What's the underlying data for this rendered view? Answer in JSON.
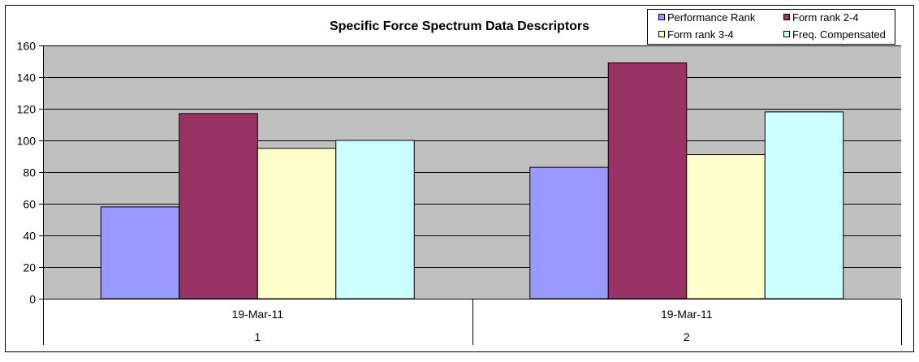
{
  "chart_data": {
    "type": "bar",
    "title": "Specific Force Spectrum Data Descriptors",
    "xlabel": "",
    "ylabel": "",
    "ylim": [
      0,
      160
    ],
    "yticks": [
      0,
      20,
      40,
      60,
      80,
      100,
      120,
      140,
      160
    ],
    "grid": true,
    "legend_position": "top-right",
    "categories": [
      {
        "date": "19-Mar-11",
        "index": "1"
      },
      {
        "date": "19-Mar-11",
        "index": "2"
      }
    ],
    "series": [
      {
        "name": "Performance Rank",
        "color": "#9999ff",
        "values": [
          58,
          83
        ]
      },
      {
        "name": "Form rank 2-4",
        "color": "#993366",
        "values": [
          117,
          149
        ]
      },
      {
        "name": "Form rank 3-4",
        "color": "#ffffcc",
        "values": [
          95,
          91
        ]
      },
      {
        "name": "Freq. Compensated",
        "color": "#ccffff",
        "values": [
          100,
          118
        ]
      }
    ],
    "colors": {
      "plot_background": "#c0c0c0",
      "gridline": "#000000",
      "frame": "#000000"
    }
  }
}
